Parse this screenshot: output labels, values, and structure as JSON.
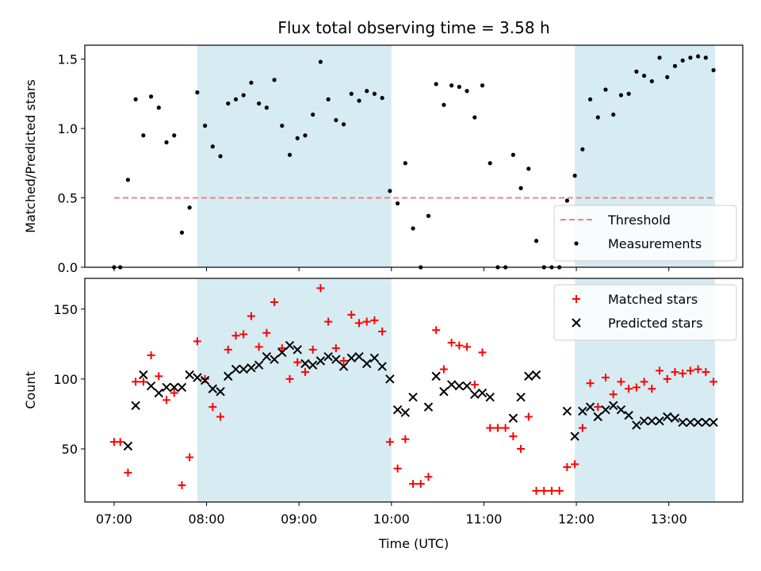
{
  "figure": {
    "title": "Flux total observing time = 3.58 h",
    "xlabel": "Time (UTC)"
  },
  "colors": {
    "shade": "#add8e6",
    "threshold": "#f08080",
    "measurements": "#000000",
    "matched": "#ff0000",
    "predicted": "#000000"
  },
  "chart_data": [
    {
      "type": "scatter",
      "panel": "top",
      "ylabel": "Matched/Predicted stars",
      "xlim": [
        "06:41",
        "13:48"
      ],
      "ylim": [
        0,
        1.6
      ],
      "yticks": [
        0.0,
        0.5,
        1.0,
        1.5
      ],
      "ytick_labels": [
        "0.0",
        "0.5",
        "1.0",
        "1.5"
      ],
      "shaded_ranges": [
        [
          "07:54",
          "10:00"
        ],
        [
          "11:59",
          "13:30"
        ]
      ],
      "threshold": {
        "name": "Threshold",
        "value": 0.5,
        "x_range": [
          "07:00",
          "13:30"
        ],
        "style": "dashed"
      },
      "legend": {
        "position": "bottom-right",
        "entries": [
          "Threshold",
          "Measurements"
        ]
      },
      "series": [
        {
          "name": "Measurements",
          "marker": "dot",
          "points": [
            [
              "07:00",
              0.0
            ],
            [
              "07:04",
              0.0
            ],
            [
              "07:09",
              0.63
            ],
            [
              "07:14",
              1.21
            ],
            [
              "07:19",
              0.95
            ],
            [
              "07:24",
              1.23
            ],
            [
              "07:29",
              1.15
            ],
            [
              "07:34",
              0.9
            ],
            [
              "07:39",
              0.95
            ],
            [
              "07:44",
              0.25
            ],
            [
              "07:49",
              0.43
            ],
            [
              "07:54",
              1.26
            ],
            [
              "07:59",
              1.02
            ],
            [
              "08:04",
              0.87
            ],
            [
              "08:09",
              0.8
            ],
            [
              "08:14",
              1.18
            ],
            [
              "08:19",
              1.21
            ],
            [
              "08:24",
              1.24
            ],
            [
              "08:29",
              1.33
            ],
            [
              "08:34",
              1.18
            ],
            [
              "08:39",
              1.15
            ],
            [
              "08:44",
              1.35
            ],
            [
              "08:49",
              1.02
            ],
            [
              "08:54",
              0.81
            ],
            [
              "08:59",
              0.93
            ],
            [
              "09:04",
              0.95
            ],
            [
              "09:09",
              1.1
            ],
            [
              "09:14",
              1.48
            ],
            [
              "09:19",
              1.21
            ],
            [
              "09:24",
              1.06
            ],
            [
              "09:29",
              1.03
            ],
            [
              "09:34",
              1.25
            ],
            [
              "09:39",
              1.2
            ],
            [
              "09:44",
              1.27
            ],
            [
              "09:49",
              1.25
            ],
            [
              "09:54",
              1.22
            ],
            [
              "09:59",
              0.55
            ],
            [
              "10:04",
              0.46
            ],
            [
              "10:09",
              0.75
            ],
            [
              "10:14",
              0.28
            ],
            [
              "10:19",
              0.0
            ],
            [
              "10:24",
              0.37
            ],
            [
              "10:29",
              1.32
            ],
            [
              "10:34",
              1.17
            ],
            [
              "10:39",
              1.31
            ],
            [
              "10:44",
              1.3
            ],
            [
              "10:49",
              1.27
            ],
            [
              "10:54",
              1.08
            ],
            [
              "10:59",
              1.31
            ],
            [
              "11:04",
              0.75
            ],
            [
              "11:09",
              0.0
            ],
            [
              "11:14",
              0.0
            ],
            [
              "11:19",
              0.81
            ],
            [
              "11:24",
              0.57
            ],
            [
              "11:29",
              0.71
            ],
            [
              "11:34",
              0.19
            ],
            [
              "11:39",
              0.0
            ],
            [
              "11:44",
              0.0
            ],
            [
              "11:49",
              0.0
            ],
            [
              "11:54",
              0.48
            ],
            [
              "11:59",
              0.66
            ],
            [
              "12:04",
              0.85
            ],
            [
              "12:09",
              1.21
            ],
            [
              "12:14",
              1.08
            ],
            [
              "12:19",
              1.28
            ],
            [
              "12:24",
              1.1
            ],
            [
              "12:29",
              1.24
            ],
            [
              "12:34",
              1.25
            ],
            [
              "12:39",
              1.41
            ],
            [
              "12:44",
              1.38
            ],
            [
              "12:49",
              1.34
            ],
            [
              "12:54",
              1.51
            ],
            [
              "12:59",
              1.37
            ],
            [
              "13:04",
              1.45
            ],
            [
              "13:09",
              1.49
            ],
            [
              "13:14",
              1.51
            ],
            [
              "13:19",
              1.52
            ],
            [
              "13:24",
              1.51
            ],
            [
              "13:29",
              1.42
            ]
          ]
        }
      ]
    },
    {
      "type": "scatter",
      "panel": "bottom",
      "ylabel": "Count",
      "xlabel": "Time (UTC)",
      "xlim": [
        "06:41",
        "13:48"
      ],
      "ylim": [
        12,
        172
      ],
      "yticks": [
        50,
        100,
        150
      ],
      "ytick_labels": [
        "50",
        "100",
        "150"
      ],
      "xticks": [
        "07:00",
        "08:00",
        "09:00",
        "10:00",
        "11:00",
        "12:00",
        "13:00"
      ],
      "shaded_ranges": [
        [
          "07:54",
          "10:00"
        ],
        [
          "11:59",
          "13:30"
        ]
      ],
      "legend": {
        "position": "top-right",
        "entries": [
          "Matched stars",
          "Predicted stars"
        ]
      },
      "series": [
        {
          "name": "Matched stars",
          "marker": "plus",
          "points": [
            [
              "07:00",
              55
            ],
            [
              "07:04",
              55
            ],
            [
              "07:09",
              33
            ],
            [
              "07:14",
              98
            ],
            [
              "07:19",
              98
            ],
            [
              "07:24",
              117
            ],
            [
              "07:29",
              102
            ],
            [
              "07:34",
              85
            ],
            [
              "07:39",
              90
            ],
            [
              "07:44",
              24
            ],
            [
              "07:49",
              44
            ],
            [
              "07:54",
              127
            ],
            [
              "07:59",
              100
            ],
            [
              "08:04",
              80
            ],
            [
              "08:09",
              73
            ],
            [
              "08:14",
              121
            ],
            [
              "08:19",
              131
            ],
            [
              "08:24",
              132
            ],
            [
              "08:29",
              145
            ],
            [
              "08:34",
              123
            ],
            [
              "08:39",
              133
            ],
            [
              "08:44",
              155
            ],
            [
              "08:49",
              122
            ],
            [
              "08:54",
              100
            ],
            [
              "08:59",
              112
            ],
            [
              "09:04",
              105
            ],
            [
              "09:09",
              121
            ],
            [
              "09:14",
              165
            ],
            [
              "09:19",
              141
            ],
            [
              "09:24",
              122
            ],
            [
              "09:29",
              113
            ],
            [
              "09:34",
              146
            ],
            [
              "09:39",
              140
            ],
            [
              "09:44",
              141
            ],
            [
              "09:49",
              142
            ],
            [
              "09:54",
              134
            ],
            [
              "09:59",
              55
            ],
            [
              "10:04",
              36
            ],
            [
              "10:09",
              57
            ],
            [
              "10:14",
              25
            ],
            [
              "10:19",
              25
            ],
            [
              "10:24",
              30
            ],
            [
              "10:29",
              135
            ],
            [
              "10:34",
              107
            ],
            [
              "10:39",
              126
            ],
            [
              "10:44",
              124
            ],
            [
              "10:49",
              123
            ],
            [
              "10:54",
              96
            ],
            [
              "10:59",
              119
            ],
            [
              "11:04",
              65
            ],
            [
              "11:09",
              65
            ],
            [
              "11:14",
              65
            ],
            [
              "11:19",
              59
            ],
            [
              "11:24",
              50
            ],
            [
              "11:29",
              73
            ],
            [
              "11:34",
              20
            ],
            [
              "11:39",
              20
            ],
            [
              "11:44",
              20
            ],
            [
              "11:49",
              20
            ],
            [
              "11:54",
              37
            ],
            [
              "11:59",
              39
            ],
            [
              "12:04",
              65
            ],
            [
              "12:09",
              97
            ],
            [
              "12:14",
              80
            ],
            [
              "12:19",
              101
            ],
            [
              "12:24",
              89
            ],
            [
              "12:29",
              98
            ],
            [
              "12:34",
              93
            ],
            [
              "12:39",
              94
            ],
            [
              "12:44",
              98
            ],
            [
              "12:49",
              93
            ],
            [
              "12:54",
              106
            ],
            [
              "12:59",
              100
            ],
            [
              "13:04",
              105
            ],
            [
              "13:09",
              104
            ],
            [
              "13:14",
              106
            ],
            [
              "13:19",
              107
            ],
            [
              "13:24",
              105
            ],
            [
              "13:29",
              98
            ]
          ]
        },
        {
          "name": "Predicted stars",
          "marker": "x",
          "points": [
            [
              "07:09",
              52
            ],
            [
              "07:14",
              81
            ],
            [
              "07:19",
              103
            ],
            [
              "07:24",
              95
            ],
            [
              "07:29",
              90
            ],
            [
              "07:34",
              94
            ],
            [
              "07:39",
              94
            ],
            [
              "07:44",
              94
            ],
            [
              "07:49",
              103
            ],
            [
              "07:54",
              101
            ],
            [
              "07:59",
              99
            ],
            [
              "08:04",
              93
            ],
            [
              "08:09",
              91
            ],
            [
              "08:14",
              102
            ],
            [
              "08:19",
              107
            ],
            [
              "08:24",
              107
            ],
            [
              "08:29",
              108
            ],
            [
              "08:34",
              110
            ],
            [
              "08:39",
              116
            ],
            [
              "08:44",
              114
            ],
            [
              "08:49",
              119
            ],
            [
              "08:54",
              124
            ],
            [
              "08:59",
              121
            ],
            [
              "09:04",
              111
            ],
            [
              "09:09",
              110
            ],
            [
              "09:14",
              113
            ],
            [
              "09:19",
              116
            ],
            [
              "09:24",
              114
            ],
            [
              "09:29",
              109
            ],
            [
              "09:34",
              115
            ],
            [
              "09:39",
              116
            ],
            [
              "09:44",
              111
            ],
            [
              "09:49",
              115
            ],
            [
              "09:54",
              109
            ],
            [
              "09:59",
              100
            ],
            [
              "10:04",
              78
            ],
            [
              "10:09",
              76
            ],
            [
              "10:14",
              87
            ],
            [
              "10:24",
              80
            ],
            [
              "10:29",
              102
            ],
            [
              "10:34",
              91
            ],
            [
              "10:39",
              96
            ],
            [
              "10:44",
              95
            ],
            [
              "10:49",
              95
            ],
            [
              "10:54",
              89
            ],
            [
              "10:59",
              90
            ],
            [
              "11:04",
              87
            ],
            [
              "11:19",
              72
            ],
            [
              "11:24",
              87
            ],
            [
              "11:29",
              102
            ],
            [
              "11:34",
              103
            ],
            [
              "11:54",
              77
            ],
            [
              "11:59",
              59
            ],
            [
              "12:04",
              77
            ],
            [
              "12:09",
              80
            ],
            [
              "12:14",
              73
            ],
            [
              "12:19",
              78
            ],
            [
              "12:24",
              81
            ],
            [
              "12:29",
              78
            ],
            [
              "12:34",
              74
            ],
            [
              "12:39",
              67
            ],
            [
              "12:44",
              70
            ],
            [
              "12:49",
              70
            ],
            [
              "12:54",
              70
            ],
            [
              "12:59",
              73
            ],
            [
              "13:04",
              72
            ],
            [
              "13:09",
              69
            ],
            [
              "13:14",
              69
            ],
            [
              "13:19",
              69
            ],
            [
              "13:24",
              69
            ],
            [
              "13:29",
              69
            ]
          ]
        }
      ]
    }
  ]
}
